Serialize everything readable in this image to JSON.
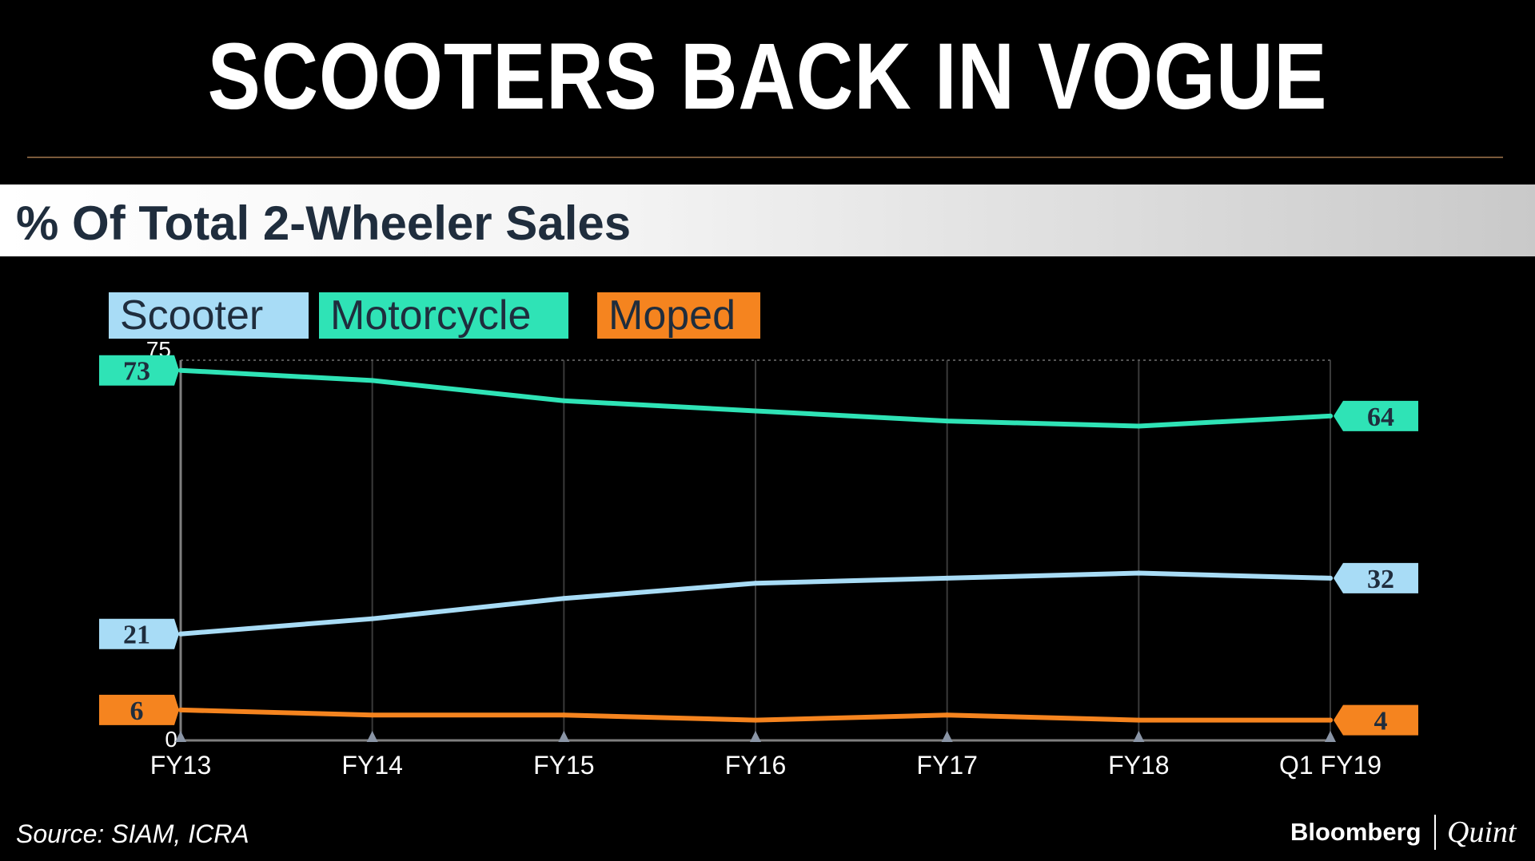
{
  "header": {
    "title": "SCOOTERS BACK IN VOGUE"
  },
  "subtitle": "% Of Total 2-Wheeler Sales",
  "colors": {
    "scooter": "#a8dcf6",
    "motorcycle": "#2fe3b6",
    "moped": "#f5841f",
    "label_text": "#1f2d3d",
    "axis": "#7f7f7f",
    "background": "#000000"
  },
  "chart_data": {
    "type": "line",
    "title": "SCOOTERS BACK IN VOGUE",
    "subtitle": "% Of Total 2-Wheeler Sales",
    "xlabel": "",
    "ylabel": "",
    "categories": [
      "FY13",
      "FY14",
      "FY15",
      "FY16",
      "FY17",
      "FY18",
      "Q1 FY19"
    ],
    "ylim": [
      0,
      75
    ],
    "ytick_labels": [
      "0",
      "75"
    ],
    "grid": "vertical",
    "legend_position": "top-left",
    "series": [
      {
        "key": "scooter",
        "name": "Scooter",
        "color": "#a8dcf6",
        "values": [
          21,
          24,
          28,
          31,
          32,
          33,
          32
        ],
        "start_label": "21",
        "end_label": "32"
      },
      {
        "key": "motorcycle",
        "name": "Motorcycle",
        "color": "#2fe3b6",
        "values": [
          73,
          71,
          67,
          65,
          63,
          62,
          64
        ],
        "start_label": "73",
        "end_label": "64"
      },
      {
        "key": "moped",
        "name": "Moped",
        "color": "#f5841f",
        "values": [
          6,
          5,
          5,
          4,
          5,
          4,
          4
        ],
        "start_label": "6",
        "end_label": "4"
      }
    ]
  },
  "footer": {
    "source": "Source: SIAM, ICRA",
    "brand_name": "Bloomberg",
    "brand_sub": "Quint"
  }
}
